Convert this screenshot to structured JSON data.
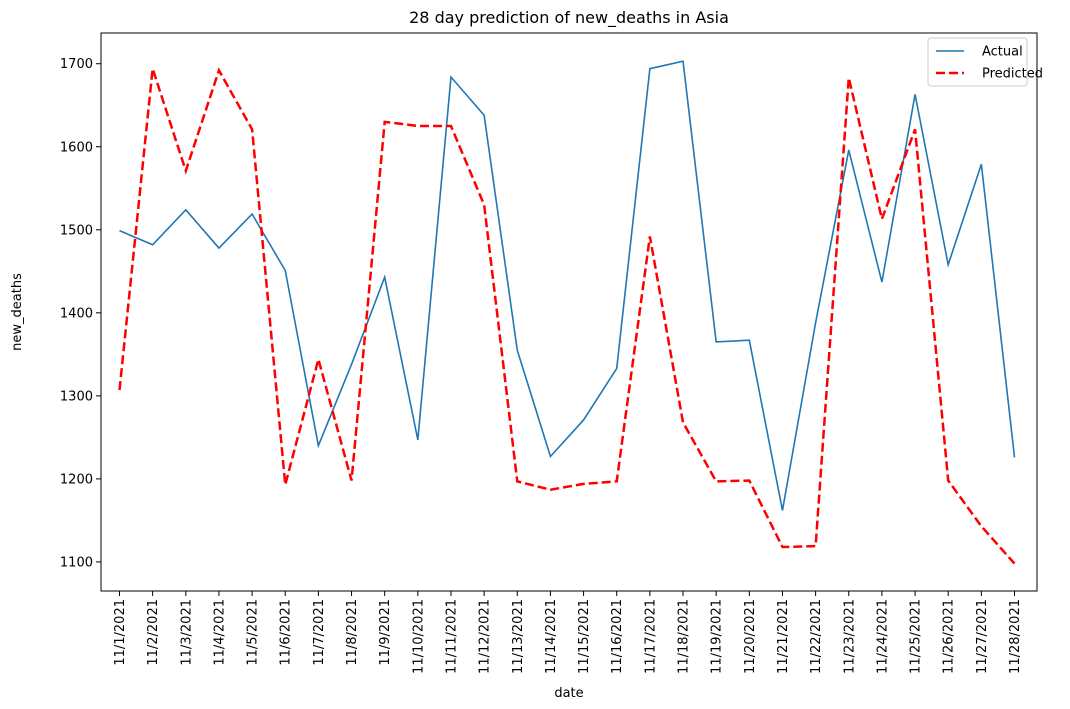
{
  "chart_data": {
    "type": "line",
    "title": "28 day prediction of new_deaths in Asia",
    "xlabel": "date",
    "ylabel": "new_deaths",
    "x": [
      "11/1/2021",
      "11/2/2021",
      "11/3/2021",
      "11/4/2021",
      "11/5/2021",
      "11/6/2021",
      "11/7/2021",
      "11/8/2021",
      "11/9/2021",
      "11/10/2021",
      "11/11/2021",
      "11/12/2021",
      "11/13/2021",
      "11/14/2021",
      "11/15/2021",
      "11/16/2021",
      "11/17/2021",
      "11/18/2021",
      "11/19/2021",
      "11/20/2021",
      "11/21/2021",
      "11/22/2021",
      "11/23/2021",
      "11/24/2021",
      "11/25/2021",
      "11/26/2021",
      "11/27/2021",
      "11/28/2021"
    ],
    "yticks": [
      1100,
      1200,
      1300,
      1400,
      1500,
      1600,
      1700
    ],
    "ylim": [
      1065,
      1737
    ],
    "series": [
      {
        "name": "Actual",
        "color": "#1f77b4",
        "style": "solid",
        "values": [
          1499,
          1482,
          1524,
          1478,
          1519,
          1451,
          1240,
          1338,
          1443,
          1247,
          1684,
          1638,
          1355,
          1227,
          1271,
          1333,
          1694,
          1703,
          1365,
          1367,
          1162,
          1388,
          1596,
          1437,
          1663,
          1458,
          1579,
          1226
        ]
      },
      {
        "name": "Predicted",
        "color": "#ff0000",
        "style": "dashed",
        "values": [
          1307,
          1694,
          1571,
          1692,
          1621,
          1193,
          1344,
          1198,
          1630,
          1625,
          1625,
          1530,
          1197,
          1187,
          1194,
          1197,
          1492,
          1268,
          1197,
          1198,
          1118,
          1119,
          1683,
          1513,
          1621,
          1198,
          1143,
          1098
        ]
      }
    ],
    "grid": false,
    "legend": "top-right"
  }
}
